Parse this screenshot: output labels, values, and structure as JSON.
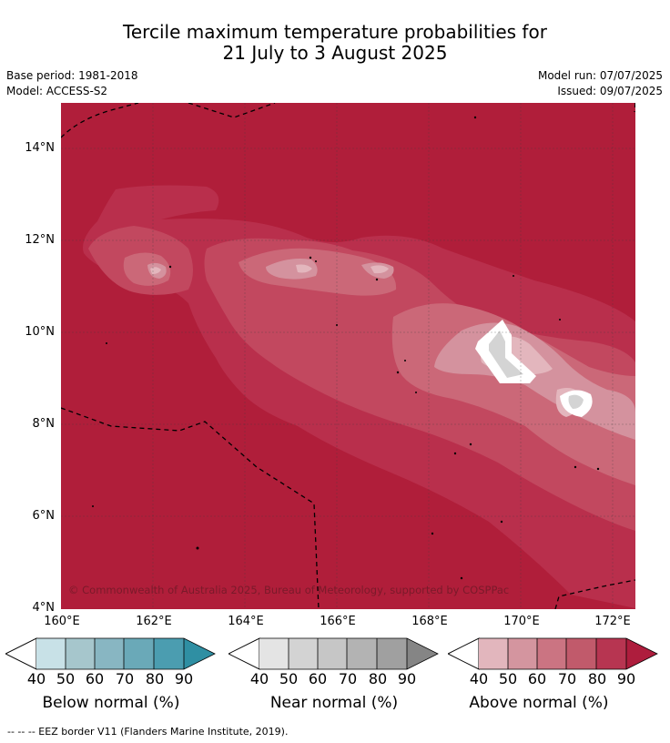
{
  "title_line1": "Tercile maximum temperature probabilities for",
  "title_line2": "21 July to 3 August 2025",
  "meta": {
    "base_period": "Base period: 1981-2018",
    "model": "Model: ACCESS-S2",
    "model_run": "Model run: 07/07/2025",
    "issued": "Issued: 09/07/2025"
  },
  "map": {
    "lat_labels": [
      "14°N",
      "12°N",
      "10°N",
      "8°N",
      "6°N",
      "4°N"
    ],
    "lon_labels": [
      "160°E",
      "162°E",
      "164°E",
      "166°E",
      "168°E",
      "170°E",
      "172°E"
    ],
    "copyright": "© Commonwealth of Australia 2025, Bureau of Meteorology, supported by COSPPac",
    "background_color": "#b01e3a"
  },
  "colorbars": [
    {
      "title": "Below normal (%)",
      "ticks": [
        "40",
        "50",
        "60",
        "70",
        "80",
        "90"
      ],
      "colors": [
        "#c8e1e7",
        "#a6c6cc",
        "#88b6c2",
        "#6aa9b8",
        "#4b9db0",
        "#2f8fa3"
      ]
    },
    {
      "title": "Near normal (%)",
      "ticks": [
        "40",
        "50",
        "60",
        "70",
        "80",
        "90"
      ],
      "colors": [
        "#e4e4e4",
        "#d3d3d3",
        "#c6c6c6",
        "#b3b3b3",
        "#a0a0a0",
        "#858585"
      ]
    },
    {
      "title": "Above normal (%)",
      "ticks": [
        "40",
        "50",
        "60",
        "70",
        "80",
        "90"
      ],
      "colors": [
        "#e2b6bd",
        "#d4959f",
        "#cb7482",
        "#c15a6b",
        "#b73551",
        "#ae1d3d"
      ]
    }
  ],
  "footnote": "-- -- -- EEZ border V11 (Flanders Marine Institute, 2019)."
}
